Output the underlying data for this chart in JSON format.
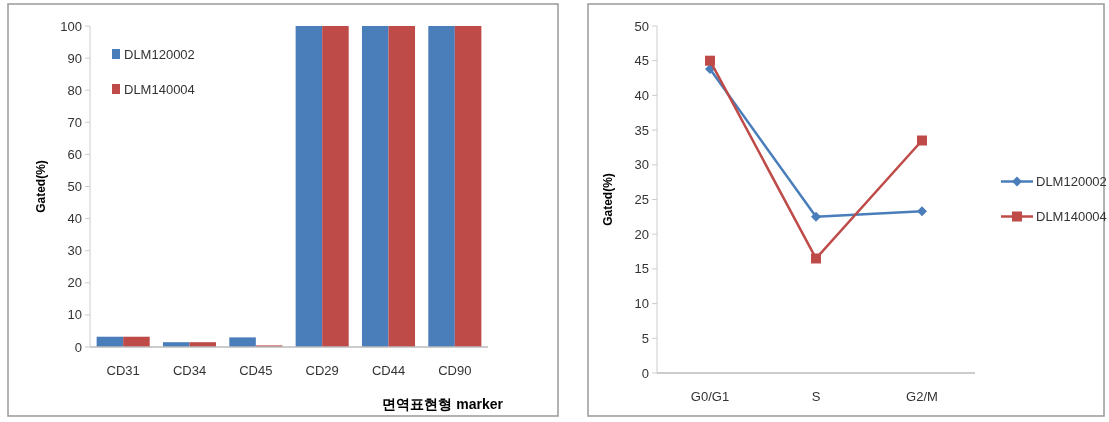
{
  "chart_data": [
    {
      "type": "bar",
      "xlabel": "면역표현형 marker",
      "ylabel": "Gated(%)",
      "categories": [
        "CD31",
        "CD34",
        "CD45",
        "CD29",
        "CD44",
        "CD90"
      ],
      "series": [
        {
          "name": "DLM120002",
          "color": "#4a7ebb",
          "values": [
            3.2,
            1.5,
            3,
            100,
            100,
            100
          ]
        },
        {
          "name": "DLM140004",
          "color": "#be4b48",
          "values": [
            3.2,
            1.5,
            0.5,
            100,
            100,
            100
          ]
        }
      ],
      "ylim": [
        0,
        100
      ],
      "yticks": [
        0,
        10,
        20,
        30,
        40,
        50,
        60,
        70,
        80,
        90,
        100
      ],
      "grid": false,
      "legend": "top left"
    },
    {
      "type": "line",
      "ylabel": "Gated(%)",
      "categories": [
        "G0/G1",
        "S",
        "G2/M"
      ],
      "series": [
        {
          "name": "DLM120002",
          "color": "#4a7ebb",
          "marker": "diamond",
          "values": [
            43.8,
            22.5,
            23.3
          ]
        },
        {
          "name": "DLM140004",
          "color": "#be4b48",
          "marker": "square",
          "values": [
            45,
            16.5,
            33.5
          ]
        }
      ],
      "ylim": [
        0,
        50
      ],
      "yticks": [
        0,
        5,
        10,
        15,
        20,
        25,
        30,
        35,
        40,
        45,
        50
      ],
      "grid": false,
      "legend": "right",
      "line_style": "solid"
    }
  ]
}
